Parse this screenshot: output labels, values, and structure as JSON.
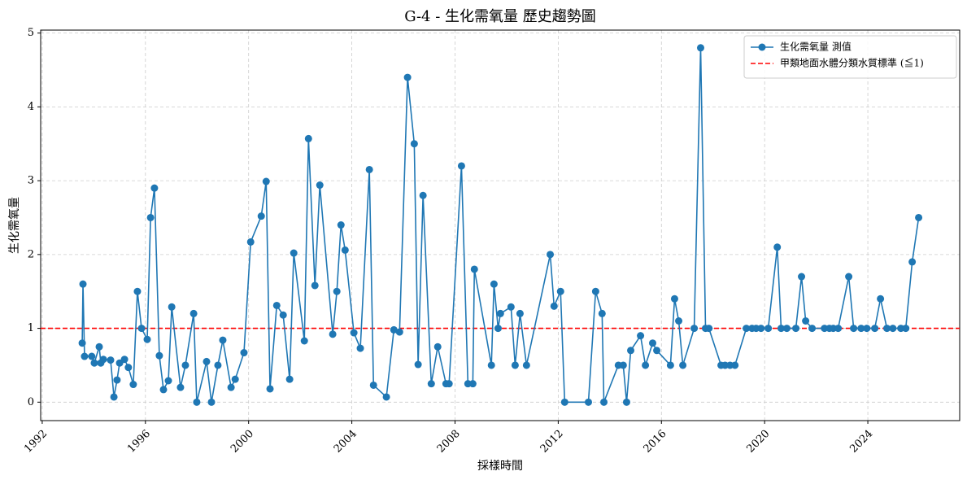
{
  "chart_data": {
    "type": "line",
    "title": "G-4 - 生化需氧量 歷史趨勢圖",
    "x_label": "採樣時間",
    "y_label": "生化需氧量",
    "x": [
      1993.55,
      1993.58,
      1993.64,
      1993.92,
      1994.02,
      1994.21,
      1994.27,
      1994.37,
      1994.65,
      1994.78,
      1994.9,
      1995.0,
      1995.19,
      1995.34,
      1995.53,
      1995.69,
      1995.85,
      1996.07,
      1996.2,
      1996.35,
      1996.54,
      1996.7,
      1996.89,
      1997.02,
      1997.36,
      1997.55,
      1997.87,
      1997.99,
      1998.37,
      1998.56,
      1998.81,
      1999.0,
      1999.32,
      1999.48,
      1999.82,
      2000.08,
      2000.49,
      2000.68,
      2000.83,
      2001.09,
      2001.34,
      2001.59,
      2001.75,
      2002.16,
      2002.32,
      2002.57,
      2002.76,
      2003.26,
      2003.42,
      2003.58,
      2003.74,
      2004.08,
      2004.33,
      2004.68,
      2004.84,
      2005.34,
      2005.63,
      2005.85,
      2006.16,
      2006.42,
      2006.57,
      2006.76,
      2007.08,
      2007.33,
      2007.65,
      2007.77,
      2008.25,
      2008.5,
      2008.69,
      2008.75,
      2009.41,
      2009.51,
      2009.67,
      2009.76,
      2010.17,
      2010.33,
      2010.52,
      2010.77,
      2011.69,
      2011.84,
      2012.09,
      2012.25,
      2013.17,
      2013.45,
      2013.7,
      2013.77,
      2014.33,
      2014.52,
      2014.65,
      2014.81,
      2015.19,
      2015.38,
      2015.66,
      2015.82,
      2016.35,
      2016.51,
      2016.67,
      2016.83,
      2017.27,
      2017.52,
      2017.71,
      2017.84,
      2018.31,
      2018.47,
      2018.66,
      2018.85,
      2019.29,
      2019.51,
      2019.67,
      2019.86,
      2020.14,
      2020.49,
      2020.64,
      2020.86,
      2021.21,
      2021.43,
      2021.59,
      2021.84,
      2022.32,
      2022.51,
      2022.66,
      2022.85,
      2023.26,
      2023.45,
      2023.74,
      2023.96,
      2024.27,
      2024.49,
      2024.74,
      2024.97,
      2025.28,
      2025.47,
      2025.72,
      2025.97
    ],
    "series": [
      {
        "name": "生化需氧量 測值",
        "color": "#1f77b4",
        "values": [
          0.8,
          1.6,
          0.62,
          0.62,
          0.53,
          0.75,
          0.53,
          0.58,
          0.57,
          0.07,
          0.3,
          0.53,
          0.58,
          0.47,
          0.24,
          1.5,
          1.0,
          0.85,
          2.5,
          2.9,
          0.63,
          0.17,
          0.29,
          1.29,
          0.2,
          0.5,
          1.2,
          0.0,
          0.55,
          0.0,
          0.5,
          0.84,
          0.2,
          0.31,
          0.67,
          2.17,
          2.52,
          2.99,
          0.18,
          1.31,
          1.18,
          0.31,
          2.02,
          0.83,
          3.57,
          1.58,
          2.94,
          0.92,
          1.5,
          2.4,
          2.06,
          0.94,
          0.73,
          3.15,
          0.23,
          0.07,
          0.98,
          0.95,
          4.4,
          3.5,
          0.51,
          2.8,
          0.25,
          0.75,
          0.25,
          0.25,
          3.2,
          0.25,
          0.25,
          1.8,
          0.5,
          1.6,
          1.0,
          1.2,
          1.29,
          0.5,
          1.2,
          0.5,
          2.0,
          1.3,
          1.5,
          0.0,
          0.0,
          1.5,
          1.2,
          0.0,
          0.5,
          0.5,
          0.0,
          0.7,
          0.9,
          0.5,
          0.8,
          0.7,
          0.5,
          1.4,
          1.1,
          0.5,
          1.0,
          4.8,
          1.0,
          1.0,
          0.5,
          0.5,
          0.5,
          0.5,
          1.0,
          1.0,
          1.0,
          1.0,
          1.0,
          2.1,
          1.0,
          1.0,
          1.0,
          1.7,
          1.1,
          1.0,
          1.0,
          1.0,
          1.0,
          1.0,
          1.7,
          1.0,
          1.0,
          1.0,
          1.0,
          1.4,
          1.0,
          1.0,
          1.0,
          1.0,
          1.9,
          2.5
        ]
      }
    ],
    "reference_lines": [
      {
        "name": "甲類地面水體分類水質標準 (≦1)",
        "value": 1,
        "color": "#ff0000"
      }
    ],
    "xlim": [
      1991.94,
      2027.56
    ],
    "xticks": [
      1992,
      1996,
      2000,
      2004,
      2008,
      2012,
      2016,
      2020,
      2024
    ],
    "ylim": [
      -0.25,
      5.04
    ],
    "yticks": [
      0,
      1,
      2,
      3,
      4,
      5
    ],
    "grid": true,
    "legend": "upper right"
  }
}
